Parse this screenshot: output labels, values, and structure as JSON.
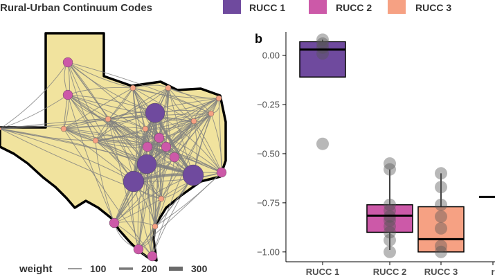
{
  "legend": {
    "title": "Rural-Urban Continuum Codes",
    "items": [
      {
        "label": "RUCC 1",
        "color": "#6f4a9e"
      },
      {
        "label": "RUCC 2",
        "color": "#cc59a8"
      },
      {
        "label": "RUCC 3",
        "color": "#f6a183"
      }
    ]
  },
  "weight_legend": {
    "title": "weight",
    "items": [
      {
        "label": "100"
      },
      {
        "label": "200"
      },
      {
        "label": "300"
      }
    ]
  },
  "map": {
    "fill_color": "#f1e39e",
    "edge_color": "#808080"
  },
  "chart_data": {
    "type": "box",
    "panel_label": "b",
    "categories": [
      "RUCC 1",
      "RUCC 2",
      "RUCC 3",
      "r"
    ],
    "ylim": [
      -1.05,
      0.12
    ],
    "yticks": [
      0.0,
      -0.25,
      -0.5,
      -0.75,
      -1.0
    ],
    "ytick_labels": [
      "0.00",
      "−0.25",
      "−0.50",
      "−0.75",
      "−1.00"
    ],
    "boxes": [
      {
        "category": "RUCC 1",
        "color": "#6f4a9e",
        "q1": -0.11,
        "median": 0.03,
        "q3": 0.07,
        "whisker_low": -0.11,
        "whisker_high": 0.08,
        "points": [
          0.08,
          0.06,
          0.04,
          0.01,
          -0.45
        ]
      },
      {
        "category": "RUCC 2",
        "color": "#cc59a8",
        "q1": -0.9,
        "median": -0.815,
        "q3": -0.76,
        "whisker_low": -0.99,
        "whisker_high": -0.58,
        "points": [
          -0.55,
          -0.58,
          -0.76,
          -0.79,
          -0.82,
          -0.84,
          -0.87,
          -0.9,
          -0.94,
          -1.0
        ]
      },
      {
        "category": "RUCC 3",
        "color": "#f6a183",
        "q1": -1.0,
        "median": -0.935,
        "q3": -0.77,
        "whisker_low": -1.0,
        "whisker_high": -0.6,
        "points": [
          -0.6,
          -0.67,
          -0.76,
          -0.82,
          -0.88,
          -0.97,
          -1.0
        ]
      },
      {
        "category": "r",
        "color": "#000000",
        "median": -0.72
      }
    ]
  }
}
